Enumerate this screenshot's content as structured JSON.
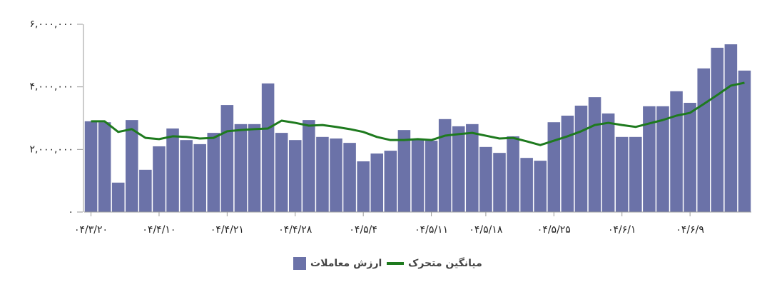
{
  "chart_data": {
    "type": "bar-line",
    "categories": [
      "۰۴/۳/۲۰",
      null,
      null,
      null,
      null,
      "۰۴/۴/۱۰",
      null,
      null,
      null,
      null,
      "۰۴/۴/۲۱",
      null,
      null,
      null,
      null,
      "۰۴/۴/۲۸",
      null,
      null,
      null,
      null,
      "۰۴/۵/۴",
      null,
      null,
      null,
      null,
      "۰۴/۵/۱۱",
      null,
      null,
      null,
      "۰۴/۵/۱۸",
      null,
      null,
      null,
      null,
      "۰۴/۵/۲۵",
      null,
      null,
      null,
      null,
      "۰۴/۶/۱",
      null,
      null,
      null,
      null,
      "۰۴/۶/۹",
      null,
      null,
      null,
      null
    ],
    "series": [
      {
        "name": "ارزش معاملات",
        "type": "bar",
        "color": "#6b72a8",
        "values": [
          2900000,
          2870000,
          940000,
          2940000,
          1350000,
          2100000,
          2670000,
          2300000,
          2170000,
          2530000,
          3420000,
          2810000,
          2810000,
          4110000,
          2530000,
          2300000,
          2940000,
          2400000,
          2350000,
          2210000,
          1620000,
          1870000,
          1960000,
          2620000,
          2300000,
          2280000,
          2970000,
          2740000,
          2810000,
          2080000,
          1890000,
          2420000,
          1730000,
          1640000,
          2870000,
          3080000,
          3400000,
          3670000,
          3150000,
          2400000,
          2400000,
          3380000,
          3380000,
          3860000,
          3490000,
          4590000,
          5250000,
          5360000,
          4520000
        ]
      },
      {
        "name": "میانگین متحرک",
        "type": "line",
        "color": "#1e7a1e",
        "values": [
          2900000,
          2900000,
          2560000,
          2650000,
          2370000,
          2330000,
          2420000,
          2400000,
          2350000,
          2370000,
          2580000,
          2620000,
          2650000,
          2670000,
          2920000,
          2850000,
          2760000,
          2780000,
          2720000,
          2650000,
          2560000,
          2400000,
          2300000,
          2300000,
          2330000,
          2300000,
          2440000,
          2490000,
          2530000,
          2440000,
          2350000,
          2370000,
          2260000,
          2140000,
          2280000,
          2420000,
          2580000,
          2780000,
          2850000,
          2780000,
          2720000,
          2830000,
          2940000,
          3080000,
          3170000,
          3450000,
          3740000,
          4040000,
          4130000
        ]
      }
    ],
    "ylim": [
      0,
      6000000
    ],
    "yticks": [
      {
        "value": 0,
        "label": "۰"
      },
      {
        "value": 2000000,
        "label": "۲,۰۰۰,۰۰۰"
      },
      {
        "value": 4000000,
        "label": "۴,۰۰۰,۰۰۰"
      },
      {
        "value": 6000000,
        "label": "۶,۰۰۰,۰۰۰"
      }
    ]
  }
}
